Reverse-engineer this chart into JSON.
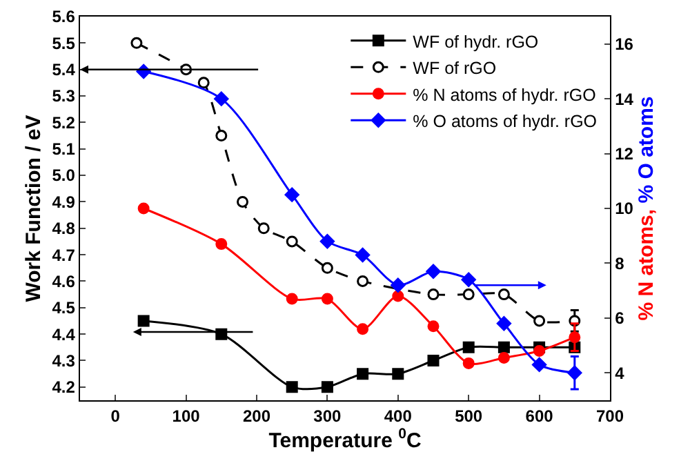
{
  "chart_data": {
    "type": "line",
    "xlabel": "Temperature $^{0}$C",
    "ylabel": "Work Function / eV",
    "y2label": "% N atoms, % O atoms",
    "xlim": [
      -50,
      700
    ],
    "xticks": [
      0,
      100,
      200,
      300,
      400,
      500,
      600,
      700
    ],
    "ylim": [
      4.15,
      5.6
    ],
    "yticks": [
      {
        "value": 4.2,
        "label": "4.2"
      },
      {
        "value": 4.3,
        "label": "4.3"
      },
      {
        "value": 4.4,
        "label": "4.4"
      },
      {
        "value": 4.5,
        "label": "4.5"
      },
      {
        "value": 4.6,
        "label": "4.6"
      },
      {
        "value": 4.7,
        "label": "4.7"
      },
      {
        "value": 4.8,
        "label": "4.8"
      },
      {
        "value": 4.9,
        "label": "4.9"
      },
      {
        "value": 5.0,
        "label": "5.0"
      },
      {
        "value": 5.1,
        "label": "5.1"
      },
      {
        "value": 5.2,
        "label": "5.2"
      },
      {
        "value": 5.3,
        "label": "5.3"
      },
      {
        "value": 5.4,
        "label": "5.4"
      },
      {
        "value": 5.5,
        "label": "5.5"
      },
      {
        "value": 5.6,
        "label": "5.6"
      }
    ],
    "y2lim": [
      3,
      17
    ],
    "y2ticks": [
      4,
      6,
      8,
      10,
      12,
      14,
      16
    ],
    "legend": "top right",
    "grid": false,
    "series": [
      {
        "name": "WF of hydr. rGO",
        "color": "#000000",
        "marker": "square",
        "line_style": "solid",
        "x": [
          40,
          150,
          250,
          300,
          350,
          400,
          450,
          500,
          550,
          600,
          650
        ],
        "values": [
          4.45,
          4.4,
          4.2,
          4.2,
          4.25,
          4.25,
          4.3,
          4.35,
          4.35,
          4.35,
          4.35
        ]
      },
      {
        "name": "WF of rGO",
        "color": "#000000",
        "marker": "circle",
        "line_style": "dashed",
        "x": [
          30,
          100,
          125,
          150,
          180,
          210,
          250,
          300,
          350,
          450,
          500,
          550,
          600,
          650
        ],
        "values": [
          5.5,
          5.4,
          5.35,
          5.15,
          4.9,
          4.8,
          4.75,
          4.65,
          4.6,
          4.55,
          4.55,
          4.55,
          4.45,
          4.45
        ],
        "errors": [
          null,
          null,
          null,
          null,
          null,
          null,
          null,
          null,
          null,
          null,
          null,
          null,
          null,
          0.04
        ]
      },
      {
        "name": "% N atoms of hydr. rGO",
        "color": "#ff0000",
        "marker": "circle",
        "line_style": "solid",
        "axis": "y2",
        "x": [
          40,
          150,
          250,
          300,
          350,
          400,
          450,
          500,
          550,
          600,
          650
        ],
        "values": [
          10,
          8.7,
          6.7,
          6.7,
          5.6,
          6.8,
          5.7,
          4.35,
          4.55,
          4.8,
          5.3
        ],
        "errors": [
          null,
          null,
          null,
          null,
          null,
          null,
          null,
          null,
          null,
          null,
          0.5
        ]
      },
      {
        "name": "% O atoms of hydr. rGO",
        "color": "#0000ff",
        "marker": "diamond",
        "line_style": "solid",
        "axis": "y2",
        "x": [
          40,
          150,
          250,
          300,
          350,
          400,
          450,
          500,
          550,
          600,
          650
        ],
        "values": [
          15,
          14,
          10.5,
          8.8,
          8.3,
          7.2,
          7.7,
          7.4,
          5.8,
          4.3,
          4
        ],
        "errors": [
          null,
          null,
          null,
          null,
          null,
          null,
          null,
          null,
          null,
          null,
          0.6
        ]
      }
    ]
  }
}
